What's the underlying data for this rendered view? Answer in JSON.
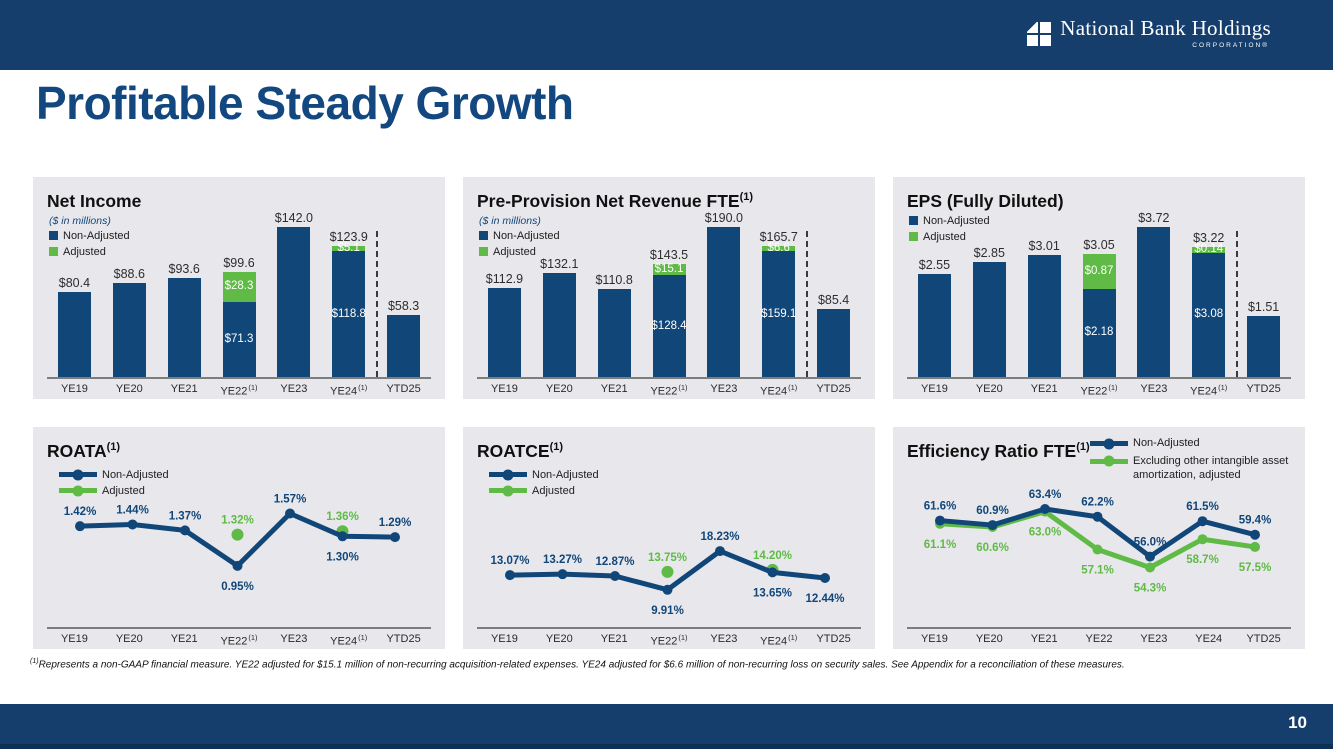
{
  "header": {
    "logo_title": "National Bank Holdings",
    "logo_subtitle": "CORPORATION®"
  },
  "page_title": "Profitable Steady Growth",
  "page_number": "10",
  "footnote": {
    "marker": "(1)",
    "text": "Represents a non-GAAP financial measure. YE22 adjusted for $15.1 million of non-recurring acquisition-related expenses. YE24 adjusted for $6.6 million of non-recurring loss on security sales. See Appendix for a reconciliation of these measures."
  },
  "colors": {
    "navy": "#114679",
    "green": "#5fba46",
    "panel_bg": "#e8e8ec",
    "header_bg": "#153e6c",
    "title_text": "#134780",
    "footer_edge": "#0b3156",
    "axis_gray": "#7d7d7d"
  },
  "chart_data": [
    {
      "type": "bar",
      "title": "Net Income",
      "title_sup": "",
      "subtitle": "($ in millions)",
      "legend": [
        {
          "label": "Non-Adjusted",
          "color": "navy"
        },
        {
          "label": "Adjusted",
          "color": "green"
        }
      ],
      "categories": [
        "YE19",
        "YE20",
        "YE21",
        "YE22",
        "YE23",
        "YE24",
        "YTD25"
      ],
      "category_sups": [
        "",
        "",
        "",
        "(1)",
        "",
        "(1)",
        ""
      ],
      "series": [
        {
          "name": "Non-Adjusted",
          "color": "navy",
          "values": [
            80.4,
            88.6,
            93.6,
            71.3,
            142.0,
            118.8,
            58.3
          ]
        },
        {
          "name": "Adjusted",
          "color": "green",
          "values": [
            null,
            null,
            null,
            28.3,
            null,
            5.1,
            null
          ]
        }
      ],
      "total_labels": [
        "$80.4",
        "$88.6",
        "$93.6",
        "$99.6",
        "$142.0",
        "$123.9",
        "$58.3"
      ],
      "inner_labels": {
        "navy": [
          null,
          null,
          null,
          "$71.3",
          null,
          "$118.8",
          null
        ],
        "green": [
          null,
          null,
          null,
          "$28.3",
          null,
          "$5.1",
          null
        ]
      },
      "divider_after_index": 5
    },
    {
      "type": "bar",
      "title": "Pre-Provision Net Revenue FTE",
      "title_sup": "(1)",
      "subtitle": "($ in millions)",
      "legend": [
        {
          "label": "Non-Adjusted",
          "color": "navy"
        },
        {
          "label": "Adjusted",
          "color": "green"
        }
      ],
      "categories": [
        "YE19",
        "YE20",
        "YE21",
        "YE22",
        "YE23",
        "YE24",
        "YTD25"
      ],
      "category_sups": [
        "",
        "",
        "",
        "(1)",
        "",
        "(1)",
        ""
      ],
      "series": [
        {
          "name": "Non-Adjusted",
          "color": "navy",
          "values": [
            112.9,
            132.1,
            110.8,
            128.4,
            190.0,
            159.1,
            85.4
          ]
        },
        {
          "name": "Adjusted",
          "color": "green",
          "values": [
            null,
            null,
            null,
            15.1,
            null,
            6.6,
            null
          ]
        }
      ],
      "total_labels": [
        "$112.9",
        "$132.1",
        "$110.8",
        "$143.5",
        "$190.0",
        "$165.7",
        "$85.4"
      ],
      "inner_labels": {
        "navy": [
          null,
          null,
          null,
          "$128.4",
          null,
          "$159.1",
          null
        ],
        "green": [
          null,
          null,
          null,
          "$15.1",
          null,
          "$6.6",
          null
        ]
      },
      "divider_after_index": 5
    },
    {
      "type": "bar",
      "title": "EPS (Fully Diluted)",
      "title_sup": "",
      "subtitle": "",
      "legend": [
        {
          "label": "Non-Adjusted",
          "color": "navy"
        },
        {
          "label": "Adjusted",
          "color": "green"
        }
      ],
      "categories": [
        "YE19",
        "YE20",
        "YE21",
        "YE22",
        "YE23",
        "YE24",
        "YTD25"
      ],
      "category_sups": [
        "",
        "",
        "",
        "(1)",
        "",
        "(1)",
        ""
      ],
      "series": [
        {
          "name": "Non-Adjusted",
          "color": "navy",
          "values": [
            2.55,
            2.85,
            3.01,
            2.18,
            3.72,
            3.08,
            1.51
          ]
        },
        {
          "name": "Adjusted",
          "color": "green",
          "values": [
            null,
            null,
            null,
            0.87,
            null,
            0.14,
            null
          ]
        }
      ],
      "total_labels": [
        "$2.55",
        "$2.85",
        "$3.01",
        "$3.05",
        "$3.72",
        "$3.22",
        "$1.51"
      ],
      "inner_labels": {
        "navy": [
          null,
          null,
          null,
          "$2.18",
          null,
          "$3.08",
          null
        ],
        "green": [
          null,
          null,
          null,
          "$0.87",
          null,
          "$0.14",
          null
        ]
      },
      "divider_after_index": 5
    },
    {
      "type": "line",
      "title": "ROATA",
      "title_sup": "(1)",
      "legend": [
        {
          "label": "Non-Adjusted",
          "color": "navy"
        },
        {
          "label": "Adjusted",
          "color": "green"
        }
      ],
      "categories": [
        "YE19",
        "YE20",
        "YE21",
        "YE22",
        "YE23",
        "YE24",
        "YTD25"
      ],
      "category_sups": [
        "",
        "",
        "",
        "(1)",
        "",
        "(1)",
        ""
      ],
      "series": [
        {
          "name": "Non-Adjusted",
          "color": "navy",
          "values": [
            1.42,
            1.44,
            1.37,
            0.95,
            1.57,
            1.3,
            1.29
          ],
          "labels": [
            "1.42%",
            "1.44%",
            "1.37%",
            "0.95%",
            "1.57%",
            "1.30%",
            "1.29%"
          ],
          "label_pos": [
            "above",
            "above",
            "above",
            "below",
            "above",
            "below",
            "above"
          ]
        },
        {
          "name": "Adjusted",
          "color": "green",
          "markers_only": true,
          "values": [
            null,
            null,
            null,
            1.32,
            null,
            1.36,
            null
          ],
          "labels": [
            null,
            null,
            null,
            "1.32%",
            null,
            "1.36%",
            null
          ],
          "label_pos": [
            null,
            null,
            null,
            "above",
            null,
            "above",
            null
          ]
        }
      ],
      "ylim": [
        0.45,
        2.05
      ]
    },
    {
      "type": "line",
      "title": "ROATCE",
      "title_sup": "(1)",
      "legend": [
        {
          "label": "Non-Adjusted",
          "color": "navy"
        },
        {
          "label": "Adjusted",
          "color": "green"
        }
      ],
      "categories": [
        "YE19",
        "YE20",
        "YE21",
        "YE22",
        "YE23",
        "YE24",
        "YTD25"
      ],
      "category_sups": [
        "",
        "",
        "",
        "(1)",
        "",
        "(1)",
        ""
      ],
      "series": [
        {
          "name": "Non-Adjusted",
          "color": "navy",
          "values": [
            13.07,
            13.27,
            12.87,
            9.91,
            18.23,
            13.65,
            12.44
          ],
          "labels": [
            "13.07%",
            "13.27%",
            "12.87%",
            "9.91%",
            "18.23%",
            "13.65%",
            "12.44%"
          ],
          "label_pos": [
            "above",
            "above",
            "above",
            "below",
            "above",
            "below",
            "below"
          ]
        },
        {
          "name": "Adjusted",
          "color": "green",
          "markers_only": true,
          "values": [
            null,
            null,
            null,
            13.75,
            null,
            14.2,
            null
          ],
          "labels": [
            null,
            null,
            null,
            "13.75%",
            null,
            "14.20%",
            null
          ],
          "label_pos": [
            null,
            null,
            null,
            "above",
            null,
            "above",
            null
          ]
        }
      ],
      "ylim": [
        6,
        35
      ]
    },
    {
      "type": "line",
      "title": "Efficiency Ratio FTE",
      "title_sup": "(1)",
      "legend": [
        {
          "label": "Non-Adjusted",
          "color": "navy"
        },
        {
          "label": "Excluding other intangible asset amortization, adjusted",
          "color": "green"
        }
      ],
      "categories": [
        "YE19",
        "YE20",
        "YE21",
        "YE22",
        "YE23",
        "YE24",
        "YTD25"
      ],
      "category_sups": [
        "",
        "",
        "",
        "",
        "",
        "",
        ""
      ],
      "series": [
        {
          "name": "Non-Adjusted",
          "color": "navy",
          "values": [
            61.6,
            60.9,
            63.4,
            62.2,
            56.0,
            61.5,
            59.4
          ],
          "labels": [
            "61.6%",
            "60.9%",
            "63.4%",
            "62.2%",
            "56.0%",
            "61.5%",
            "59.4%"
          ],
          "label_pos": [
            "above",
            "above",
            "above",
            "above",
            "above",
            "above",
            "above"
          ]
        },
        {
          "name": "Excluding other intangible asset amortization, adjusted",
          "color": "green",
          "values": [
            61.1,
            60.6,
            63.0,
            57.1,
            54.3,
            58.7,
            57.5
          ],
          "labels": [
            "61.1%",
            "60.6%",
            "63.0%",
            "57.1%",
            "54.3%",
            "58.7%",
            "57.5%"
          ],
          "label_pos": [
            "below",
            "below",
            "below",
            "below",
            "below",
            "below",
            "below"
          ]
        }
      ],
      "ylim": [
        48,
        69
      ]
    }
  ]
}
